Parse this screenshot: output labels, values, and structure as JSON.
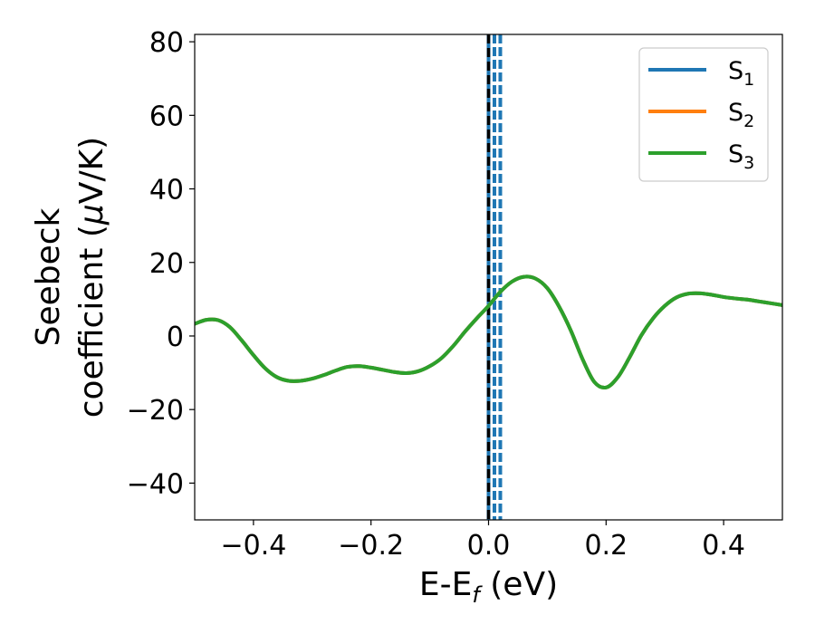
{
  "chart_data": {
    "type": "line",
    "title": "",
    "xlabel": {
      "main": "E-E",
      "sub": "f",
      "unit": " (eV)"
    },
    "ylabel": {
      "line1": "Seebeck",
      "line2_prefix": "coefficient  (",
      "mu": "μ",
      "line2_suffix": "V/K)"
    },
    "xlim": [
      -0.5,
      0.5
    ],
    "ylim": [
      -50,
      82
    ],
    "xticks": [
      -0.4,
      -0.2,
      0.0,
      0.2,
      0.4
    ],
    "xtick_labels": [
      "−0.4",
      "−0.2",
      "0.0",
      "0.2",
      "0.4"
    ],
    "yticks": [
      -40,
      -20,
      0,
      20,
      40,
      60,
      80
    ],
    "ytick_labels": [
      "−40",
      "−20",
      "0",
      "20",
      "40",
      "60",
      "80"
    ],
    "grid": false,
    "legend_position": "top-right",
    "fermi_line": {
      "x": 0.0,
      "color": "#000000",
      "style": "dashed"
    },
    "vlines": [
      {
        "x": 0.0,
        "color": "#1f77b4",
        "style": "solid"
      },
      {
        "x": 0.01,
        "color": "#1f77b4",
        "style": "dashed"
      },
      {
        "x": 0.02,
        "color": "#1f77b4",
        "style": "dashed"
      }
    ],
    "series": [
      {
        "name": "S",
        "sub": "1",
        "color": "#1f77b4",
        "x": [
          -0.5,
          -0.48,
          -0.46,
          -0.44,
          -0.42,
          -0.4,
          -0.38,
          -0.36,
          -0.34,
          -0.32,
          -0.3,
          -0.28,
          -0.26,
          -0.24,
          -0.22,
          -0.2,
          -0.18,
          -0.16,
          -0.14,
          -0.12,
          -0.1,
          -0.08,
          -0.06,
          -0.04,
          -0.02,
          0.0,
          0.02,
          0.04,
          0.06,
          0.08,
          0.1,
          0.12,
          0.14,
          0.16,
          0.18,
          0.2,
          0.22,
          0.24,
          0.26,
          0.28,
          0.3,
          0.32,
          0.34,
          0.36,
          0.38,
          0.4,
          0.42,
          0.44,
          0.46,
          0.48,
          0.5
        ],
        "y": [
          3.3,
          4.4,
          4.3,
          2.4,
          -1.2,
          -5.2,
          -8.8,
          -11.2,
          -12.2,
          -12.2,
          -11.6,
          -10.6,
          -9.4,
          -8.4,
          -8.2,
          -8.6,
          -9.2,
          -9.8,
          -10.1,
          -9.6,
          -8.2,
          -6.0,
          -2.7,
          1.2,
          4.8,
          8.2,
          12.0,
          14.8,
          16.1,
          15.6,
          13.0,
          8.0,
          1.5,
          -6.3,
          -12.5,
          -14.0,
          -11.2,
          -5.8,
          0.2,
          4.8,
          8.2,
          10.5,
          11.5,
          11.6,
          11.2,
          10.6,
          10.2,
          9.9,
          9.4,
          8.9,
          8.4
        ]
      },
      {
        "name": "S",
        "sub": "2",
        "color": "#ff7f0e",
        "x": [
          -0.5,
          -0.48,
          -0.46,
          -0.44,
          -0.42,
          -0.4,
          -0.38,
          -0.36,
          -0.34,
          -0.32,
          -0.3,
          -0.28,
          -0.26,
          -0.24,
          -0.22,
          -0.2,
          -0.18,
          -0.16,
          -0.14,
          -0.12,
          -0.1,
          -0.08,
          -0.06,
          -0.04,
          -0.02,
          0.0,
          0.02,
          0.04,
          0.06,
          0.08,
          0.1,
          0.12,
          0.14,
          0.16,
          0.18,
          0.2,
          0.22,
          0.24,
          0.26,
          0.28,
          0.3,
          0.32,
          0.34,
          0.36,
          0.38,
          0.4,
          0.42,
          0.44,
          0.46,
          0.48,
          0.5
        ],
        "y": [
          3.3,
          4.4,
          4.3,
          2.4,
          -1.2,
          -5.2,
          -8.8,
          -11.2,
          -12.2,
          -12.2,
          -11.6,
          -10.6,
          -9.4,
          -8.4,
          -8.2,
          -8.6,
          -9.2,
          -9.8,
          -10.1,
          -9.6,
          -8.2,
          -6.0,
          -2.7,
          1.2,
          4.8,
          8.2,
          12.0,
          14.8,
          16.1,
          15.6,
          13.0,
          8.0,
          1.5,
          -6.3,
          -12.5,
          -14.0,
          -11.2,
          -5.8,
          0.2,
          4.8,
          8.2,
          10.5,
          11.5,
          11.6,
          11.2,
          10.6,
          10.2,
          9.9,
          9.4,
          8.9,
          8.4
        ]
      },
      {
        "name": "S",
        "sub": "3",
        "color": "#2ca02c",
        "x": [
          -0.5,
          -0.48,
          -0.46,
          -0.44,
          -0.42,
          -0.4,
          -0.38,
          -0.36,
          -0.34,
          -0.32,
          -0.3,
          -0.28,
          -0.26,
          -0.24,
          -0.22,
          -0.2,
          -0.18,
          -0.16,
          -0.14,
          -0.12,
          -0.1,
          -0.08,
          -0.06,
          -0.04,
          -0.02,
          0.0,
          0.02,
          0.04,
          0.06,
          0.08,
          0.1,
          0.12,
          0.14,
          0.16,
          0.18,
          0.2,
          0.22,
          0.24,
          0.26,
          0.28,
          0.3,
          0.32,
          0.34,
          0.36,
          0.38,
          0.4,
          0.42,
          0.44,
          0.46,
          0.48,
          0.5
        ],
        "y": [
          3.3,
          4.4,
          4.3,
          2.4,
          -1.2,
          -5.2,
          -8.8,
          -11.2,
          -12.2,
          -12.2,
          -11.6,
          -10.6,
          -9.4,
          -8.4,
          -8.2,
          -8.6,
          -9.2,
          -9.8,
          -10.1,
          -9.6,
          -8.2,
          -6.0,
          -2.7,
          1.2,
          4.8,
          8.2,
          12.0,
          14.8,
          16.1,
          15.6,
          13.0,
          8.0,
          1.5,
          -6.3,
          -12.5,
          -14.0,
          -11.2,
          -5.8,
          0.2,
          4.8,
          8.2,
          10.5,
          11.5,
          11.6,
          11.2,
          10.6,
          10.2,
          9.9,
          9.4,
          8.9,
          8.4
        ]
      }
    ]
  }
}
